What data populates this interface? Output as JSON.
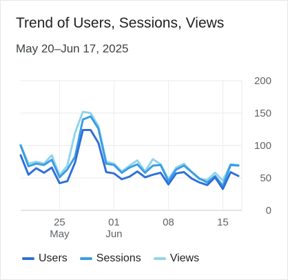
{
  "title": "Trend of Users, Sessions, Views",
  "subtitle": "May 20–Jun 17, 2025",
  "chart_data": {
    "type": "line",
    "x": [
      "2025-05-20",
      "2025-05-21",
      "2025-05-22",
      "2025-05-23",
      "2025-05-24",
      "2025-05-25",
      "2025-05-26",
      "2025-05-27",
      "2025-05-28",
      "2025-05-29",
      "2025-05-30",
      "2025-05-31",
      "2025-06-01",
      "2025-06-02",
      "2025-06-03",
      "2025-06-04",
      "2025-06-05",
      "2025-06-06",
      "2025-06-07",
      "2025-06-08",
      "2025-06-09",
      "2025-06-10",
      "2025-06-11",
      "2025-06-12",
      "2025-06-13",
      "2025-06-14",
      "2025-06-15",
      "2025-06-16",
      "2025-06-17"
    ],
    "x_ticks": [
      {
        "date": "2025-05-25",
        "day": "25",
        "month": "May"
      },
      {
        "date": "2025-06-01",
        "day": "01",
        "month": "Jun"
      },
      {
        "date": "2025-06-08",
        "day": "08",
        "month": ""
      },
      {
        "date": "2025-06-15",
        "day": "15",
        "month": ""
      }
    ],
    "y_ticks": [
      0,
      50,
      100,
      150,
      200
    ],
    "ylim": [
      0,
      200
    ],
    "grid": true,
    "legend_position": "bottom-left",
    "series": [
      {
        "name": "Users",
        "color": "#2f6fdb",
        "values": [
          85,
          55,
          65,
          58,
          66,
          42,
          45,
          74,
          124,
          124,
          104,
          59,
          57,
          48,
          52,
          60,
          51,
          55,
          58,
          40,
          57,
          59,
          49,
          43,
          39,
          51,
          33,
          59,
          53
        ]
      },
      {
        "name": "Sessions",
        "color": "#3b9de3",
        "values": [
          100,
          68,
          72,
          70,
          78,
          51,
          63,
          83,
          140,
          145,
          126,
          72,
          70,
          58,
          66,
          71,
          58,
          69,
          70,
          45,
          63,
          69,
          59,
          49,
          43,
          53,
          38,
          70,
          69
        ]
      },
      {
        "name": "Views",
        "color": "#90d4ea",
        "values": [
          101,
          72,
          75,
          72,
          85,
          54,
          69,
          120,
          152,
          150,
          130,
          75,
          72,
          60,
          69,
          77,
          60,
          79,
          71,
          48,
          66,
          72,
          59,
          48,
          47,
          58,
          46,
          71,
          70
        ]
      }
    ]
  }
}
